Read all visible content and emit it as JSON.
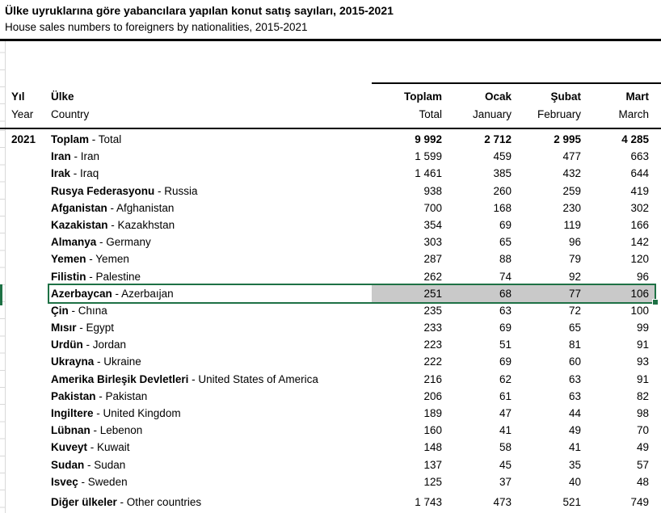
{
  "title": {
    "tr": "Ülke uyruklarına göre yabancılara yapılan konut satış sayıları, 2015-2021",
    "en": "House sales numbers to foreigners by nationalities, 2015-2021"
  },
  "colors": {
    "selection_green": "#1e7145",
    "selection_fill_gray": "#c9c9c9",
    "rule_black": "#000000",
    "gridline_gray": "#d9d9d9"
  },
  "table": {
    "separator": " - ",
    "col_headers": [
      {
        "tr": "Yıl",
        "en": "Year"
      },
      {
        "tr": "Ülke",
        "en": "Country"
      },
      {
        "tr": "Toplam",
        "en": "Total"
      },
      {
        "tr": "Ocak",
        "en": "January"
      },
      {
        "tr": "Şubat",
        "en": "February"
      },
      {
        "tr": "Mart",
        "en": "March"
      }
    ],
    "rows": [
      {
        "year": "2021",
        "tr": "Toplam",
        "en": "Total",
        "values": [
          "9 992",
          "2 712",
          "2 995",
          "4 285"
        ],
        "bold_values": true,
        "selected": false,
        "last": false
      },
      {
        "year": "",
        "tr": "Iran",
        "en": "Iran",
        "values": [
          "1 599",
          "459",
          "477",
          "663"
        ],
        "bold_values": false,
        "selected": false,
        "last": false
      },
      {
        "year": "",
        "tr": "Irak",
        "en": "Iraq",
        "values": [
          "1 461",
          "385",
          "432",
          "644"
        ],
        "bold_values": false,
        "selected": false,
        "last": false
      },
      {
        "year": "",
        "tr": "Rusya Federasyonu",
        "en": "Russia",
        "values": [
          "938",
          "260",
          "259",
          "419"
        ],
        "bold_values": false,
        "selected": false,
        "last": false
      },
      {
        "year": "",
        "tr": "Afganistan",
        "en": "Afghanistan",
        "values": [
          "700",
          "168",
          "230",
          "302"
        ],
        "bold_values": false,
        "selected": false,
        "last": false
      },
      {
        "year": "",
        "tr": "Kazakistan",
        "en": "Kazakhstan",
        "values": [
          "354",
          "69",
          "119",
          "166"
        ],
        "bold_values": false,
        "selected": false,
        "last": false
      },
      {
        "year": "",
        "tr": "Almanya",
        "en": "Germany",
        "values": [
          "303",
          "65",
          "96",
          "142"
        ],
        "bold_values": false,
        "selected": false,
        "last": false
      },
      {
        "year": "",
        "tr": "Yemen",
        "en": "Yemen",
        "values": [
          "287",
          "88",
          "79",
          "120"
        ],
        "bold_values": false,
        "selected": false,
        "last": false
      },
      {
        "year": "",
        "tr": "Filistin",
        "en": "Palestine",
        "values": [
          "262",
          "74",
          "92",
          "96"
        ],
        "bold_values": false,
        "selected": false,
        "last": false
      },
      {
        "year": "",
        "tr": "Azerbaycan",
        "en": "Azerbaıjan",
        "values": [
          "251",
          "68",
          "77",
          "106"
        ],
        "bold_values": false,
        "selected": true,
        "last": false
      },
      {
        "year": "",
        "tr": "Çin",
        "en": "Chına",
        "values": [
          "235",
          "63",
          "72",
          "100"
        ],
        "bold_values": false,
        "selected": false,
        "last": false
      },
      {
        "year": "",
        "tr": "Mısır",
        "en": "Egypt",
        "values": [
          "233",
          "69",
          "65",
          "99"
        ],
        "bold_values": false,
        "selected": false,
        "last": false
      },
      {
        "year": "",
        "tr": "Urdün",
        "en": "Jordan",
        "values": [
          "223",
          "51",
          "81",
          "91"
        ],
        "bold_values": false,
        "selected": false,
        "last": false
      },
      {
        "year": "",
        "tr": "Ukrayna",
        "en": "Ukraine",
        "values": [
          "222",
          "69",
          "60",
          "93"
        ],
        "bold_values": false,
        "selected": false,
        "last": false
      },
      {
        "year": "",
        "tr": "Amerika Birleşik Devletleri",
        "en": "United States of America",
        "values": [
          "216",
          "62",
          "63",
          "91"
        ],
        "bold_values": false,
        "selected": false,
        "last": false
      },
      {
        "year": "",
        "tr": "Pakistan",
        "en": "Pakistan",
        "values": [
          "206",
          "61",
          "63",
          "82"
        ],
        "bold_values": false,
        "selected": false,
        "last": false
      },
      {
        "year": "",
        "tr": "Ingiltere",
        "en": "United Kingdom",
        "values": [
          "189",
          "47",
          "44",
          "98"
        ],
        "bold_values": false,
        "selected": false,
        "last": false
      },
      {
        "year": "",
        "tr": "Lübnan",
        "en": "Lebenon",
        "values": [
          "160",
          "41",
          "49",
          "70"
        ],
        "bold_values": false,
        "selected": false,
        "last": false
      },
      {
        "year": "",
        "tr": "Kuveyt",
        "en": "Kuwait",
        "values": [
          "148",
          "58",
          "41",
          "49"
        ],
        "bold_values": false,
        "selected": false,
        "last": false
      },
      {
        "year": "",
        "tr": "Sudan",
        "en": "Sudan",
        "values": [
          "137",
          "45",
          "35",
          "57"
        ],
        "bold_values": false,
        "selected": false,
        "last": false
      },
      {
        "year": "",
        "tr": "Isveç",
        "en": "Sweden",
        "values": [
          "125",
          "37",
          "40",
          "48"
        ],
        "bold_values": false,
        "selected": false,
        "last": false
      },
      {
        "year": "",
        "tr": "Diğer ülkeler",
        "en": "Other countries",
        "values": [
          "1 743",
          "473",
          "521",
          "749"
        ],
        "bold_values": false,
        "selected": false,
        "last": true
      }
    ]
  }
}
